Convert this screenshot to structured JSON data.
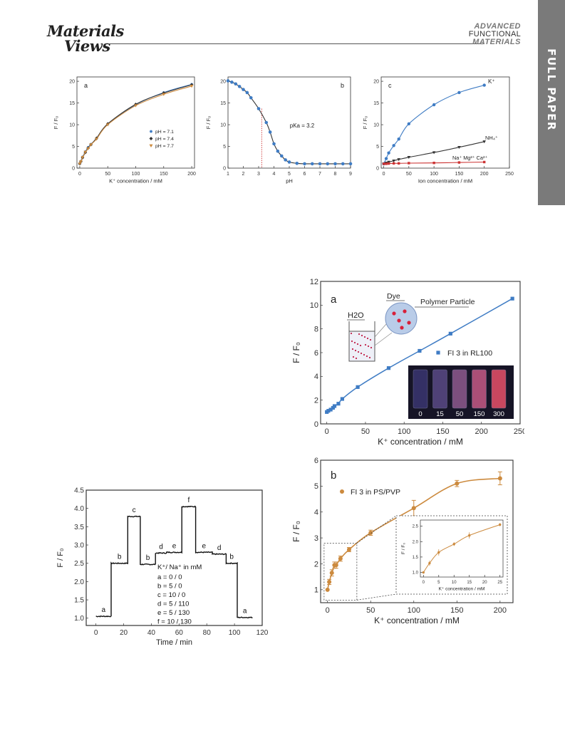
{
  "header": {
    "logo_line1": "Materials",
    "logo_line2": "Views",
    "journal_line1": "ADVANCED",
    "journal_line2": "FUNCTIONAL",
    "journal_line3": "MATERIALS",
    "section_tab": "FULL PAPER"
  },
  "colors": {
    "blue": "#3f7cc4",
    "orange": "#cc8a3e",
    "dark": "#333333",
    "red": "#cc3333"
  },
  "chart_data": [
    {
      "id": "fig-top-a",
      "type": "scatter",
      "panel_label": "a",
      "xlabel": "K⁺ concentration / mM",
      "ylabel": "F / F₀",
      "xlim": [
        -5,
        205
      ],
      "ylim": [
        0,
        21
      ],
      "xticks": [
        0,
        50,
        100,
        150,
        200
      ],
      "yticks": [
        0,
        5,
        10,
        15,
        20
      ],
      "legend_position": "bottom-right",
      "x": [
        0,
        2,
        5,
        10,
        15,
        20,
        30,
        50,
        100,
        150,
        200
      ],
      "series": [
        {
          "name": "pH = 7.1",
          "color": "#3f7cc4",
          "marker": "circle",
          "values": [
            1.0,
            1.6,
            2.6,
            3.8,
            4.8,
            5.5,
            6.8,
            10.1,
            14.6,
            17.4,
            19.3
          ]
        },
        {
          "name": "pH = 7.4",
          "color": "#333333",
          "marker": "diamond",
          "values": [
            1.0,
            1.5,
            2.4,
            3.6,
            4.6,
            5.4,
            6.9,
            10.2,
            14.7,
            17.3,
            19.2
          ]
        },
        {
          "name": "pH = 7.7",
          "color": "#cc8a3e",
          "marker": "triangle-down",
          "values": [
            1.0,
            1.5,
            2.5,
            3.7,
            4.5,
            5.4,
            6.7,
            10.0,
            14.4,
            17.0,
            18.9
          ]
        }
      ]
    },
    {
      "id": "fig-top-b",
      "type": "line",
      "panel_label": "b",
      "xlabel": "pH",
      "ylabel": "F / F₀",
      "xlim": [
        1,
        9
      ],
      "ylim": [
        0,
        21
      ],
      "xticks": [
        1,
        2,
        3,
        4,
        5,
        6,
        7,
        8,
        9
      ],
      "yticks": [
        0,
        5,
        10,
        15,
        20
      ],
      "annotation": "pKa = 3.2",
      "pka": 3.2,
      "series": [
        {
          "name": "",
          "color": "#3f7cc4",
          "x": [
            1,
            1.25,
            1.5,
            1.75,
            2,
            2.25,
            2.5,
            3,
            3.5,
            3.75,
            4,
            4.25,
            4.5,
            4.75,
            5,
            5.5,
            6,
            6.5,
            7,
            7.5,
            8,
            8.5,
            9
          ],
          "values": [
            20.1,
            19.8,
            19.4,
            18.8,
            18.1,
            17.4,
            16.2,
            13.7,
            10.5,
            8.3,
            5.6,
            3.9,
            2.8,
            1.9,
            1.4,
            1.1,
            1.0,
            1.0,
            1.0,
            1.0,
            1.0,
            1.0,
            1.0
          ]
        }
      ]
    },
    {
      "id": "fig-top-c",
      "type": "scatter",
      "panel_label": "c",
      "xlabel": "Ion concentration / mM",
      "ylabel": "F / F₀",
      "xlim": [
        -5,
        250
      ],
      "ylim": [
        0,
        21
      ],
      "xticks": [
        0,
        50,
        100,
        150,
        200,
        250
      ],
      "yticks": [
        0,
        5,
        10,
        15,
        20
      ],
      "x": [
        0,
        5,
        10,
        20,
        30,
        50,
        100,
        150,
        200
      ],
      "series": [
        {
          "name": "K⁺",
          "color": "#3f7cc4",
          "marker": "circle",
          "values": [
            1.0,
            2.2,
            3.5,
            5.2,
            6.7,
            10.2,
            14.6,
            17.4,
            19.1
          ]
        },
        {
          "name": "NH₄⁺",
          "color": "#333333",
          "marker": "triangle-down",
          "values": [
            1.0,
            1.2,
            1.4,
            1.7,
            2.0,
            2.5,
            3.6,
            4.8,
            6.1
          ]
        },
        {
          "name": "Na⁺ Mg²⁺ Ca²⁺",
          "color": "#cc3333",
          "marker": "square",
          "values": [
            1.0,
            1.0,
            1.05,
            1.1,
            1.1,
            1.15,
            1.2,
            1.3,
            1.4
          ]
        }
      ]
    },
    {
      "id": "fig-time",
      "type": "line",
      "xlabel": "Time / min",
      "ylabel": "F / F₀",
      "xlim": [
        -7,
        120
      ],
      "ylim": [
        0.8,
        4.5
      ],
      "xticks": [
        0,
        20,
        40,
        60,
        80,
        100,
        120
      ],
      "yticks": [
        1.0,
        1.5,
        2.0,
        2.5,
        3.0,
        3.5,
        4.0,
        4.5
      ],
      "legend_title": "K⁺/ Na⁺ in mM",
      "legend_entries": [
        "a = 0 / 0",
        "b = 5 / 0",
        "c = 10 / 0",
        "d = 5 / 110",
        "e = 5 / 130",
        "f = 10 / 130"
      ],
      "segments": [
        {
          "label": "a",
          "x0": 0,
          "x1": 11,
          "value": 1.05
        },
        {
          "label": "b",
          "x0": 11,
          "x1": 23,
          "value": 2.5
        },
        {
          "label": "c",
          "x0": 23,
          "x1": 32,
          "value": 3.78
        },
        {
          "label": "b",
          "x0": 32,
          "x1": 43,
          "value": 2.47
        },
        {
          "label": "d",
          "x0": 43,
          "x1": 51,
          "value": 2.78
        },
        {
          "label": "e",
          "x0": 51,
          "x1": 62,
          "value": 2.8
        },
        {
          "label": "f",
          "x0": 62,
          "x1": 72,
          "value": 4.05
        },
        {
          "label": "e",
          "x0": 72,
          "x1": 84,
          "value": 2.8
        },
        {
          "label": "d",
          "x0": 84,
          "x1": 94,
          "value": 2.75
        },
        {
          "label": "b",
          "x0": 94,
          "x1": 102,
          "value": 2.5
        },
        {
          "label": "a",
          "x0": 102,
          "x1": 113,
          "value": 1.02
        }
      ]
    },
    {
      "id": "fig-right-a",
      "type": "scatter",
      "panel_label": "a",
      "xlabel": "K⁺ concentration / mM",
      "ylabel": "F / F₀",
      "xlim": [
        -8,
        250
      ],
      "ylim": [
        0,
        12
      ],
      "xticks": [
        0,
        50,
        100,
        150,
        200,
        250
      ],
      "yticks": [
        0,
        2,
        4,
        6,
        8,
        10,
        12
      ],
      "legend": "FI 3 in RL100",
      "x": [
        0,
        2,
        5,
        8,
        10,
        15,
        20,
        40,
        80,
        120,
        160,
        240
      ],
      "series": [
        {
          "name": "FI 3 in RL100",
          "color": "#3f7cc4",
          "marker": "square",
          "values": [
            1.0,
            1.1,
            1.2,
            1.35,
            1.5,
            1.7,
            2.1,
            3.1,
            4.7,
            6.15,
            7.6,
            10.55
          ]
        }
      ],
      "inset_labels": {
        "dye": "Dye",
        "particle": "Polymer Particle",
        "water": "H2O"
      },
      "vial_labels": [
        "0",
        "15",
        "50",
        "150",
        "300"
      ]
    },
    {
      "id": "fig-right-b",
      "type": "scatter",
      "panel_label": "b",
      "xlabel": "K⁺ concentration / mM",
      "ylabel": "F / F₀",
      "xlim": [
        -8,
        215
      ],
      "ylim": [
        0.5,
        6
      ],
      "xticks": [
        0,
        50,
        100,
        150,
        200
      ],
      "yticks": [
        1,
        2,
        3,
        4,
        5,
        6
      ],
      "legend": "FI 3 in PS/PVP",
      "x": [
        0,
        2,
        5,
        8,
        10,
        15,
        25,
        50,
        100,
        150,
        200
      ],
      "series": [
        {
          "name": "FI 3 in PS/PVP",
          "color": "#cc8a3e",
          "marker": "circle",
          "values": [
            1.0,
            1.3,
            1.65,
            1.95,
            1.95,
            2.2,
            2.55,
            3.2,
            4.15,
            5.1,
            5.3
          ]
        }
      ],
      "inset": {
        "xlabel": "K⁺ concentration / mM",
        "ylabel": "F / F₀",
        "xlim": [
          -1,
          26
        ],
        "ylim": [
          0.85,
          2.7
        ],
        "xticks": [
          0,
          5,
          10,
          15,
          20,
          25
        ],
        "yticks": [
          1.0,
          1.5,
          2.0,
          2.5
        ],
        "x": [
          0,
          2,
          5,
          10,
          15,
          25
        ],
        "values": [
          1.0,
          1.3,
          1.65,
          1.92,
          2.2,
          2.55
        ]
      }
    }
  ]
}
